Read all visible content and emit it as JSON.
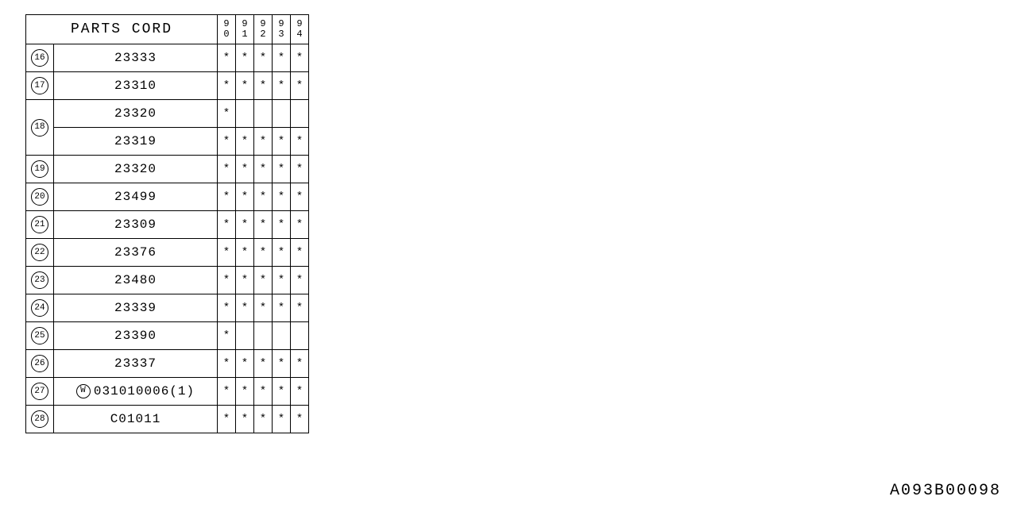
{
  "header": {
    "title": "PARTS CORD",
    "years": [
      "90",
      "91",
      "92",
      "93",
      "94"
    ]
  },
  "footer": "A093B00098",
  "asterisk": "*",
  "rows": [
    {
      "idx": "16",
      "idx_span": 1,
      "parts": [
        {
          "code": "23333",
          "prefix": "",
          "marks": [
            true,
            true,
            true,
            true,
            true
          ]
        }
      ]
    },
    {
      "idx": "17",
      "idx_span": 1,
      "parts": [
        {
          "code": "23310",
          "prefix": "",
          "marks": [
            true,
            true,
            true,
            true,
            true
          ]
        }
      ]
    },
    {
      "idx": "18",
      "idx_span": 2,
      "parts": [
        {
          "code": "23320",
          "prefix": "",
          "marks": [
            true,
            false,
            false,
            false,
            false
          ]
        },
        {
          "code": "23319",
          "prefix": "",
          "marks": [
            true,
            true,
            true,
            true,
            true
          ]
        }
      ]
    },
    {
      "idx": "19",
      "idx_span": 1,
      "parts": [
        {
          "code": "23320",
          "prefix": "",
          "marks": [
            true,
            true,
            true,
            true,
            true
          ]
        }
      ]
    },
    {
      "idx": "20",
      "idx_span": 1,
      "parts": [
        {
          "code": "23499",
          "prefix": "",
          "marks": [
            true,
            true,
            true,
            true,
            true
          ]
        }
      ]
    },
    {
      "idx": "21",
      "idx_span": 1,
      "parts": [
        {
          "code": "23309",
          "prefix": "",
          "marks": [
            true,
            true,
            true,
            true,
            true
          ]
        }
      ]
    },
    {
      "idx": "22",
      "idx_span": 1,
      "parts": [
        {
          "code": "23376",
          "prefix": "",
          "marks": [
            true,
            true,
            true,
            true,
            true
          ]
        }
      ]
    },
    {
      "idx": "23",
      "idx_span": 1,
      "parts": [
        {
          "code": "23480",
          "prefix": "",
          "marks": [
            true,
            true,
            true,
            true,
            true
          ]
        }
      ]
    },
    {
      "idx": "24",
      "idx_span": 1,
      "parts": [
        {
          "code": "23339",
          "prefix": "",
          "marks": [
            true,
            true,
            true,
            true,
            true
          ]
        }
      ]
    },
    {
      "idx": "25",
      "idx_span": 1,
      "parts": [
        {
          "code": "23390",
          "prefix": "",
          "marks": [
            true,
            false,
            false,
            false,
            false
          ]
        }
      ]
    },
    {
      "idx": "26",
      "idx_span": 1,
      "parts": [
        {
          "code": "23337",
          "prefix": "",
          "marks": [
            true,
            true,
            true,
            true,
            true
          ]
        }
      ]
    },
    {
      "idx": "27",
      "idx_span": 1,
      "parts": [
        {
          "code": "031010006(1)",
          "prefix": "W",
          "marks": [
            true,
            true,
            true,
            true,
            true
          ]
        }
      ]
    },
    {
      "idx": "28",
      "idx_span": 1,
      "parts": [
        {
          "code": "C01011",
          "prefix": "",
          "marks": [
            true,
            true,
            true,
            true,
            true
          ]
        }
      ]
    }
  ]
}
